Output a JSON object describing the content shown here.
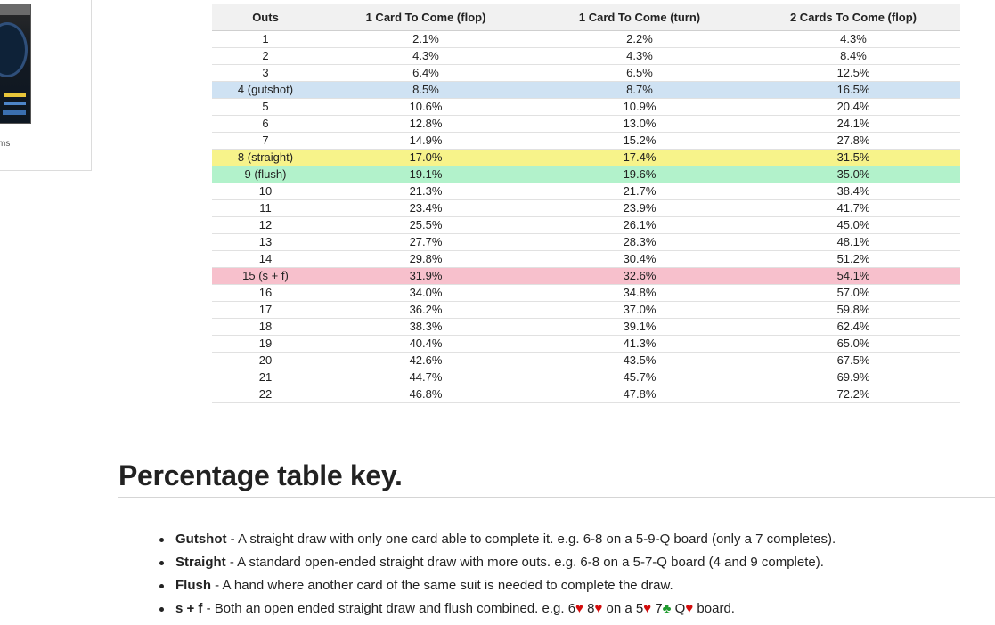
{
  "sidebar": {
    "text_fragment": "ms"
  },
  "odds_table": {
    "headers": [
      "Outs",
      "1 Card To Come (flop)",
      "1 Card To Come (turn)",
      "2 Cards To Come (flop)"
    ],
    "rows": [
      {
        "outs": "1",
        "flop1": "2.1%",
        "turn1": "2.2%",
        "flop2": "4.3%",
        "highlight": ""
      },
      {
        "outs": "2",
        "flop1": "4.3%",
        "turn1": "4.3%",
        "flop2": "8.4%",
        "highlight": ""
      },
      {
        "outs": "3",
        "flop1": "6.4%",
        "turn1": "6.5%",
        "flop2": "12.5%",
        "highlight": ""
      },
      {
        "outs": "4 (gutshot)",
        "flop1": "8.5%",
        "turn1": "8.7%",
        "flop2": "16.5%",
        "highlight": "blue"
      },
      {
        "outs": "5",
        "flop1": "10.6%",
        "turn1": "10.9%",
        "flop2": "20.4%",
        "highlight": ""
      },
      {
        "outs": "6",
        "flop1": "12.8%",
        "turn1": "13.0%",
        "flop2": "24.1%",
        "highlight": ""
      },
      {
        "outs": "7",
        "flop1": "14.9%",
        "turn1": "15.2%",
        "flop2": "27.8%",
        "highlight": ""
      },
      {
        "outs": "8 (straight)",
        "flop1": "17.0%",
        "turn1": "17.4%",
        "flop2": "31.5%",
        "highlight": "yellow"
      },
      {
        "outs": "9 (flush)",
        "flop1": "19.1%",
        "turn1": "19.6%",
        "flop2": "35.0%",
        "highlight": "green"
      },
      {
        "outs": "10",
        "flop1": "21.3%",
        "turn1": "21.7%",
        "flop2": "38.4%",
        "highlight": ""
      },
      {
        "outs": "11",
        "flop1": "23.4%",
        "turn1": "23.9%",
        "flop2": "41.7%",
        "highlight": ""
      },
      {
        "outs": "12",
        "flop1": "25.5%",
        "turn1": "26.1%",
        "flop2": "45.0%",
        "highlight": ""
      },
      {
        "outs": "13",
        "flop1": "27.7%",
        "turn1": "28.3%",
        "flop2": "48.1%",
        "highlight": ""
      },
      {
        "outs": "14",
        "flop1": "29.8%",
        "turn1": "30.4%",
        "flop2": "51.2%",
        "highlight": ""
      },
      {
        "outs": "15 (s + f)",
        "flop1": "31.9%",
        "turn1": "32.6%",
        "flop2": "54.1%",
        "highlight": "pink"
      },
      {
        "outs": "16",
        "flop1": "34.0%",
        "turn1": "34.8%",
        "flop2": "57.0%",
        "highlight": ""
      },
      {
        "outs": "17",
        "flop1": "36.2%",
        "turn1": "37.0%",
        "flop2": "59.8%",
        "highlight": ""
      },
      {
        "outs": "18",
        "flop1": "38.3%",
        "turn1": "39.1%",
        "flop2": "62.4%",
        "highlight": ""
      },
      {
        "outs": "19",
        "flop1": "40.4%",
        "turn1": "41.3%",
        "flop2": "65.0%",
        "highlight": ""
      },
      {
        "outs": "20",
        "flop1": "42.6%",
        "turn1": "43.5%",
        "flop2": "67.5%",
        "highlight": ""
      },
      {
        "outs": "21",
        "flop1": "44.7%",
        "turn1": "45.7%",
        "flop2": "69.9%",
        "highlight": ""
      },
      {
        "outs": "22",
        "flop1": "46.8%",
        "turn1": "47.8%",
        "flop2": "72.2%",
        "highlight": ""
      }
    ]
  },
  "key": {
    "title": "Percentage table key.",
    "items": [
      {
        "term": "Gutshot",
        "text": " - A straight draw with only one card able to complete it. e.g. 6-8 on a 5-9-Q board (only a 7 completes)."
      },
      {
        "term": "Straight",
        "text": " - A standard open-ended straight draw with more outs. e.g. 6-8 on a 5-7-Q board (4 and 9 complete)."
      },
      {
        "term": "Flush",
        "text": " - A hand where another card of the same suit is needed to complete the draw."
      }
    ],
    "sf_item": {
      "term": "s + f",
      "text_before": " - Both an open ended straight draw and flush combined. e.g. 6",
      "heart": "♥",
      "club": "♣",
      "text_8": " 8",
      "text_on_a_5": " on a 5",
      "text_7": " 7",
      "text_q": " Q",
      "text_board": " board."
    }
  },
  "colors": {
    "blue_highlight": "#cfe2f3",
    "yellow_highlight": "#f7f38a",
    "green_highlight": "#b2f2cb",
    "pink_highlight": "#f7c0cc",
    "heart_red": "#d30d0d",
    "club_green": "#1f9a2e"
  }
}
